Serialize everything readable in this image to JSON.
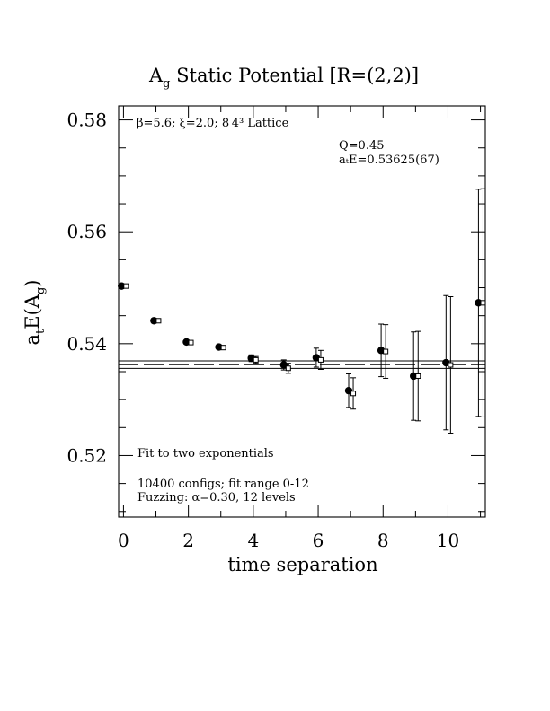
{
  "chart_data": {
    "type": "scatter",
    "title_main": "A",
    "title_sub": "g",
    "title_rest": " Static Potential [R=(2,2)]",
    "xlabel": "time separation",
    "ylabel_main": "a",
    "ylabel_sub1": "t",
    "ylabel_mid": "E(A",
    "ylabel_sub2": "g",
    "ylabel_end": ")",
    "xlim": [
      -0.15,
      11.15
    ],
    "ylim": [
      0.509,
      0.5825
    ],
    "x_ticks": [
      0,
      2,
      4,
      6,
      8,
      10
    ],
    "x_tick_labels": [
      "0",
      "2",
      "4",
      "6",
      "8",
      "10"
    ],
    "y_ticks": [
      0.52,
      0.54,
      0.56,
      0.58
    ],
    "y_tick_labels": [
      "0.52",
      "0.54",
      "0.56",
      "0.58"
    ],
    "lattice_note": "β=5.6; ξ=2.0; 8 4³ Lattice",
    "q_note": "Q=0.45",
    "fit_energy_note": "aₜE=0.53625(67)",
    "fit_label": "Fit to two exponentials",
    "configs_note": "10400 configs; fit range 0-12",
    "fuzzing_note": "Fuzzing: α=0.30, 12 levels",
    "fit": {
      "value": 0.53625,
      "error": 0.00067
    },
    "series": [
      {
        "marker": "filled-circle",
        "points": [
          {
            "x": 0,
            "y": 0.5503,
            "err": 0.0002
          },
          {
            "x": 1,
            "y": 0.5441,
            "err": 0.0003
          },
          {
            "x": 2,
            "y": 0.5403,
            "err": 0.0003
          },
          {
            "x": 3,
            "y": 0.5394,
            "err": 0.0004
          },
          {
            "x": 4,
            "y": 0.5374,
            "err": 0.0006
          },
          {
            "x": 5,
            "y": 0.5362,
            "err": 0.0009
          },
          {
            "x": 6,
            "y": 0.5375,
            "err": 0.0017
          },
          {
            "x": 7,
            "y": 0.5316,
            "err": 0.003
          },
          {
            "x": 8,
            "y": 0.5388,
            "err": 0.0047
          },
          {
            "x": 9,
            "y": 0.5342,
            "err": 0.0079
          },
          {
            "x": 10,
            "y": 0.5366,
            "err": 0.012
          },
          {
            "x": 11,
            "y": 0.5473,
            "err": 0.0203
          }
        ]
      },
      {
        "marker": "open-square",
        "points": [
          {
            "x": 0,
            "y": 0.5503,
            "err": 0.0002
          },
          {
            "x": 1,
            "y": 0.5441,
            "err": 0.0003
          },
          {
            "x": 2,
            "y": 0.5402,
            "err": 0.0003
          },
          {
            "x": 3,
            "y": 0.5393,
            "err": 0.0004
          },
          {
            "x": 4,
            "y": 0.5371,
            "err": 0.0006
          },
          {
            "x": 5,
            "y": 0.5356,
            "err": 0.0009
          },
          {
            "x": 6,
            "y": 0.5371,
            "err": 0.0017
          },
          {
            "x": 7,
            "y": 0.5311,
            "err": 0.0028
          },
          {
            "x": 8,
            "y": 0.5386,
            "err": 0.0048
          },
          {
            "x": 9,
            "y": 0.5342,
            "err": 0.008
          },
          {
            "x": 10,
            "y": 0.5362,
            "err": 0.0122
          },
          {
            "x": 11,
            "y": 0.5473,
            "err": 0.0204
          }
        ]
      }
    ]
  }
}
